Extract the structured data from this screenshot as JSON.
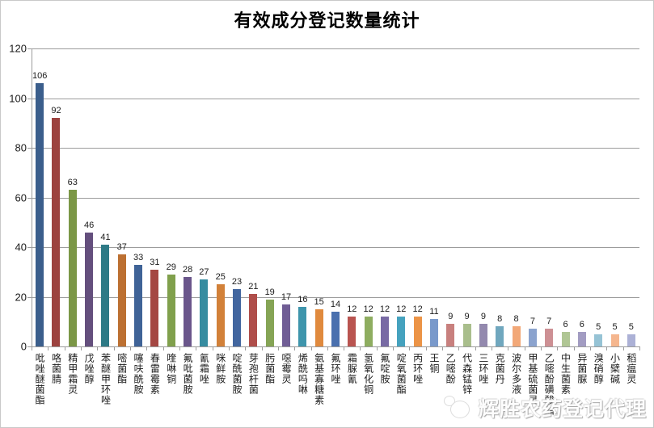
{
  "title": "有效成分登记数量统计",
  "watermark": {
    "text": "辉胜农药登记代理",
    "logo": "panda-logo-icon"
  },
  "chart_data": {
    "type": "bar",
    "title": "有效成分登记数量统计",
    "categories": [
      "吡唑醚菌酯",
      "咯菌腈",
      "精甲霜灵",
      "戊唑醇",
      "苯醚甲环唑",
      "嘧菌酯",
      "噻呋酰胺",
      "春雷霉素",
      "喹啉铜",
      "氟吡菌胺",
      "氰霜唑",
      "咪鲜胺",
      "啶酰菌胺",
      "芽孢杆菌",
      "肟菌酯",
      "噁霉灵",
      "烯酰吗啉",
      "氨基寡糖素",
      "氟环唑",
      "霜脲氰",
      "氢氧化铜",
      "氟啶胺",
      "啶氧菌酯",
      "丙环唑",
      "王铜",
      "乙嘧酚",
      "代森锰锌",
      "三环唑",
      "克菌丹",
      "波尔多液",
      "甲基硫菌灵",
      "乙嘧酚磺酸酯",
      "中生菌素",
      "异菌脲",
      "溴硝醇",
      "小檗碱",
      "稻瘟灵"
    ],
    "values": [
      106,
      92,
      63,
      46,
      41,
      37,
      33,
      31,
      29,
      28,
      27,
      25,
      23,
      21,
      19,
      17,
      16,
      15,
      14,
      12,
      12,
      12,
      12,
      12,
      11,
      9,
      9,
      9,
      8,
      8,
      7,
      7,
      6,
      6,
      5,
      5,
      5
    ],
    "bar_colors": [
      "#3B5E8C",
      "#9C423F",
      "#7B9746",
      "#644F7D",
      "#2E7A86",
      "#BC7032",
      "#3F6397",
      "#A44743",
      "#80A04C",
      "#6A568B",
      "#368CA0",
      "#D28139",
      "#42669F",
      "#AF4E4A",
      "#85A455",
      "#705D95",
      "#3E95AC",
      "#E08A3E",
      "#4A70AE",
      "#B95450",
      "#8EAD60",
      "#786AA4",
      "#45A2BE",
      "#EC9447",
      "#7999CB",
      "#C8807E",
      "#A9BE8C",
      "#9389AE",
      "#70A7BE",
      "#F2A878",
      "#8BA3CE",
      "#CD9094",
      "#B0C695",
      "#A29CC2",
      "#96C3D5",
      "#F5B68E",
      "#ACB1D6"
    ],
    "xlabel": "",
    "ylabel": "",
    "ylim": [
      0,
      120
    ],
    "yticks": [
      0,
      20,
      40,
      60,
      80,
      100,
      120
    ],
    "grid": true,
    "data_labels": true,
    "legend_position": "none",
    "axis_color": "#9c9c9c"
  }
}
